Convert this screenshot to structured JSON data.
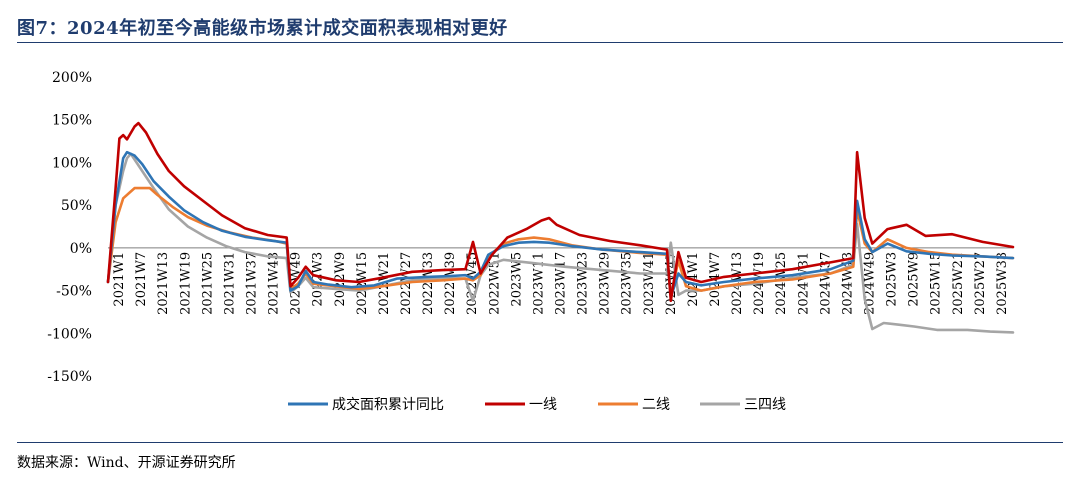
{
  "title": "图7：2024年初至今高能级市场累计成交面积表现相对更好",
  "source": "数据来源：Wind、开源证券研究所",
  "chart_data": {
    "type": "line",
    "ylim": [
      -1.5,
      2.0
    ],
    "y_ticks": [
      2.0,
      1.5,
      1.0,
      0.5,
      0.0,
      -0.5,
      -1.0,
      -1.5
    ],
    "y_tick_labels": [
      "200%",
      "150%",
      "100%",
      "50%",
      "0%",
      "-50%",
      "-100%",
      "-150%"
    ],
    "x_tick_labels": [
      "2021W1",
      "2021W7",
      "2021W13",
      "2021W19",
      "2021W25",
      "2021W31",
      "2021W37",
      "2021W43",
      "2021W49",
      "2022W3",
      "2022W9",
      "2022W15",
      "2022W21",
      "2022W27",
      "2022W33",
      "2022W39",
      "2022W45",
      "2022W51",
      "2023W5",
      "2023W11",
      "2023W17",
      "2023W23",
      "2023W29",
      "2023W35",
      "2023W41",
      "2023W47",
      "2024W1",
      "2024W7",
      "2024W13",
      "2024W19",
      "2024W25",
      "2024W31",
      "2024W37",
      "2024W43",
      "2024W49",
      "2025W3",
      "2025W9",
      "2025W15",
      "2025W21",
      "2025W27",
      "2025W33"
    ],
    "legend_position": "bottom",
    "grid": false,
    "series": [
      {
        "name": "成交面积累计同比",
        "color": "#2f75b5",
        "points": [
          [
            0,
            -0.4
          ],
          [
            2,
            0.5
          ],
          [
            4,
            1.05
          ],
          [
            5,
            1.12
          ],
          [
            7,
            1.08
          ],
          [
            9,
            0.98
          ],
          [
            12,
            0.78
          ],
          [
            16,
            0.6
          ],
          [
            20,
            0.44
          ],
          [
            25,
            0.3
          ],
          [
            30,
            0.2
          ],
          [
            36,
            0.13
          ],
          [
            42,
            0.09
          ],
          [
            47,
            0.06
          ],
          [
            48,
            -0.5
          ],
          [
            50,
            -0.45
          ],
          [
            52,
            -0.27
          ],
          [
            54,
            -0.4
          ],
          [
            58,
            -0.43
          ],
          [
            64,
            -0.46
          ],
          [
            70,
            -0.44
          ],
          [
            76,
            -0.36
          ],
          [
            84,
            -0.34
          ],
          [
            90,
            -0.33
          ],
          [
            94,
            -0.32
          ],
          [
            96,
            -0.36
          ],
          [
            98,
            -0.28
          ],
          [
            100,
            -0.08
          ],
          [
            104,
            0.02
          ],
          [
            108,
            0.06
          ],
          [
            112,
            0.07
          ],
          [
            116,
            0.06
          ],
          [
            122,
            0.02
          ],
          [
            130,
            -0.02
          ],
          [
            140,
            -0.05
          ],
          [
            147,
            -0.07
          ],
          [
            148,
            -0.58
          ],
          [
            150,
            -0.3
          ],
          [
            152,
            -0.4
          ],
          [
            156,
            -0.44
          ],
          [
            162,
            -0.4
          ],
          [
            170,
            -0.36
          ],
          [
            180,
            -0.32
          ],
          [
            190,
            -0.25
          ],
          [
            196,
            -0.15
          ],
          [
            197,
            0.55
          ],
          [
            199,
            0.1
          ],
          [
            201,
            -0.05
          ],
          [
            205,
            0.05
          ],
          [
            210,
            -0.04
          ],
          [
            216,
            -0.07
          ],
          [
            222,
            -0.09
          ],
          [
            230,
            -0.1
          ],
          [
            238,
            -0.12
          ]
        ]
      },
      {
        "name": "一线",
        "color": "#c00000",
        "points": [
          [
            0,
            -0.4
          ],
          [
            2,
            0.7
          ],
          [
            3,
            1.28
          ],
          [
            4,
            1.32
          ],
          [
            5,
            1.27
          ],
          [
            7,
            1.42
          ],
          [
            8,
            1.46
          ],
          [
            10,
            1.35
          ],
          [
            13,
            1.1
          ],
          [
            16,
            0.9
          ],
          [
            20,
            0.72
          ],
          [
            25,
            0.55
          ],
          [
            30,
            0.38
          ],
          [
            36,
            0.23
          ],
          [
            42,
            0.15
          ],
          [
            47,
            0.12
          ],
          [
            48,
            -0.45
          ],
          [
            50,
            -0.35
          ],
          [
            52,
            -0.22
          ],
          [
            54,
            -0.32
          ],
          [
            60,
            -0.38
          ],
          [
            66,
            -0.4
          ],
          [
            72,
            -0.35
          ],
          [
            80,
            -0.28
          ],
          [
            88,
            -0.26
          ],
          [
            94,
            -0.25
          ],
          [
            96,
            0.07
          ],
          [
            98,
            -0.3
          ],
          [
            101,
            -0.08
          ],
          [
            105,
            0.12
          ],
          [
            110,
            0.22
          ],
          [
            114,
            0.32
          ],
          [
            116,
            0.35
          ],
          [
            118,
            0.27
          ],
          [
            124,
            0.15
          ],
          [
            132,
            0.08
          ],
          [
            140,
            0.03
          ],
          [
            147,
            -0.02
          ],
          [
            148,
            -0.62
          ],
          [
            150,
            -0.05
          ],
          [
            152,
            -0.35
          ],
          [
            156,
            -0.4
          ],
          [
            162,
            -0.34
          ],
          [
            170,
            -0.3
          ],
          [
            180,
            -0.25
          ],
          [
            190,
            -0.17
          ],
          [
            196,
            -0.12
          ],
          [
            197,
            1.12
          ],
          [
            199,
            0.35
          ],
          [
            201,
            0.05
          ],
          [
            205,
            0.22
          ],
          [
            210,
            0.27
          ],
          [
            215,
            0.14
          ],
          [
            222,
            0.16
          ],
          [
            230,
            0.07
          ],
          [
            238,
            0.01
          ]
        ]
      },
      {
        "name": "二线",
        "color": "#ed7d31",
        "points": [
          [
            0,
            -0.4
          ],
          [
            2,
            0.3
          ],
          [
            4,
            0.58
          ],
          [
            7,
            0.7
          ],
          [
            11,
            0.7
          ],
          [
            13,
            0.62
          ],
          [
            17,
            0.48
          ],
          [
            21,
            0.36
          ],
          [
            26,
            0.26
          ],
          [
            32,
            0.18
          ],
          [
            38,
            0.12
          ],
          [
            44,
            0.08
          ],
          [
            47,
            0.05
          ],
          [
            48,
            -0.48
          ],
          [
            50,
            -0.42
          ],
          [
            52,
            -0.3
          ],
          [
            54,
            -0.42
          ],
          [
            60,
            -0.45
          ],
          [
            66,
            -0.48
          ],
          [
            72,
            -0.45
          ],
          [
            80,
            -0.4
          ],
          [
            88,
            -0.38
          ],
          [
            94,
            -0.36
          ],
          [
            96,
            -0.38
          ],
          [
            98,
            -0.32
          ],
          [
            100,
            -0.1
          ],
          [
            104,
            0.05
          ],
          [
            108,
            0.1
          ],
          [
            112,
            0.12
          ],
          [
            116,
            0.1
          ],
          [
            122,
            0.03
          ],
          [
            130,
            -0.02
          ],
          [
            140,
            -0.06
          ],
          [
            147,
            -0.08
          ],
          [
            148,
            -0.56
          ],
          [
            150,
            -0.15
          ],
          [
            152,
            -0.45
          ],
          [
            156,
            -0.5
          ],
          [
            162,
            -0.45
          ],
          [
            170,
            -0.4
          ],
          [
            180,
            -0.37
          ],
          [
            190,
            -0.3
          ],
          [
            196,
            -0.22
          ],
          [
            197,
            0.45
          ],
          [
            199,
            0.05
          ],
          [
            201,
            -0.05
          ],
          [
            205,
            0.1
          ],
          [
            210,
            0.0
          ],
          [
            216,
            -0.05
          ],
          [
            222,
            -0.08
          ],
          [
            230,
            -0.1
          ],
          [
            238,
            -0.12
          ]
        ]
      },
      {
        "name": "三四线",
        "color": "#a5a5a5",
        "points": [
          [
            0,
            -0.4
          ],
          [
            2,
            0.5
          ],
          [
            4,
            0.9
          ],
          [
            5,
            1.05
          ],
          [
            6,
            1.1
          ],
          [
            9,
            0.9
          ],
          [
            12,
            0.7
          ],
          [
            16,
            0.45
          ],
          [
            21,
            0.25
          ],
          [
            26,
            0.12
          ],
          [
            31,
            0.02
          ],
          [
            36,
            -0.05
          ],
          [
            42,
            -0.1
          ],
          [
            47,
            -0.12
          ],
          [
            48,
            -0.52
          ],
          [
            50,
            -0.45
          ],
          [
            52,
            -0.35
          ],
          [
            54,
            -0.46
          ],
          [
            60,
            -0.48
          ],
          [
            66,
            -0.5
          ],
          [
            72,
            -0.45
          ],
          [
            80,
            -0.38
          ],
          [
            88,
            -0.35
          ],
          [
            94,
            -0.36
          ],
          [
            96,
            -0.62
          ],
          [
            98,
            -0.32
          ],
          [
            100,
            -0.2
          ],
          [
            104,
            -0.14
          ],
          [
            112,
            -0.18
          ],
          [
            120,
            -0.22
          ],
          [
            130,
            -0.26
          ],
          [
            140,
            -0.3
          ],
          [
            147,
            -0.3
          ],
          [
            148,
            0.06
          ],
          [
            150,
            -0.55
          ],
          [
            152,
            -0.5
          ],
          [
            156,
            -0.5
          ],
          [
            162,
            -0.45
          ],
          [
            170,
            -0.42
          ],
          [
            180,
            -0.35
          ],
          [
            190,
            -0.3
          ],
          [
            196,
            -0.2
          ],
          [
            197,
            0.28
          ],
          [
            199,
            -0.6
          ],
          [
            201,
            -0.95
          ],
          [
            204,
            -0.88
          ],
          [
            208,
            -0.9
          ],
          [
            212,
            -0.92
          ],
          [
            218,
            -0.96
          ],
          [
            226,
            -0.96
          ],
          [
            232,
            -0.98
          ],
          [
            238,
            -0.99
          ]
        ]
      }
    ]
  }
}
